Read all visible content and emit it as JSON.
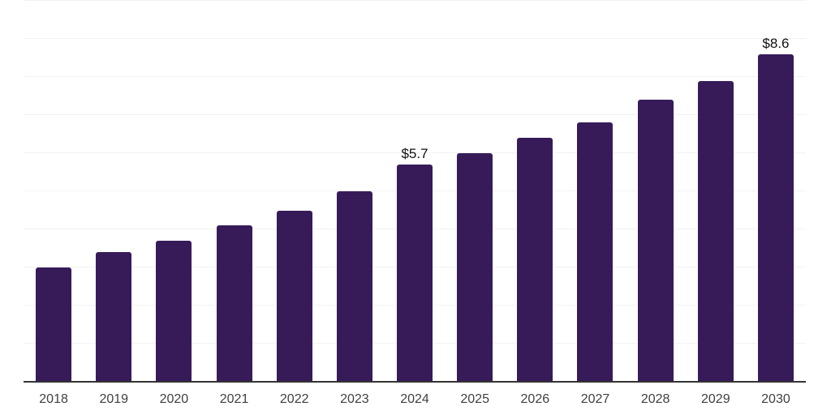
{
  "chart_data": {
    "type": "bar",
    "title": "",
    "xlabel": "",
    "ylabel": "",
    "categories": [
      "2018",
      "2019",
      "2020",
      "2021",
      "2022",
      "2023",
      "2024",
      "2025",
      "2026",
      "2027",
      "2028",
      "2029",
      "2030"
    ],
    "values": [
      3.0,
      3.4,
      3.7,
      4.1,
      4.5,
      5.0,
      5.7,
      6.0,
      6.4,
      6.8,
      7.4,
      7.9,
      8.6
    ],
    "data_labels": {
      "2024": "$5.7",
      "2030": "$8.6"
    },
    "ylim": [
      0,
      10
    ],
    "gridline_step": 1,
    "grid": true,
    "legend": false,
    "colors": {
      "bar": "#371B59",
      "axis": "#333333",
      "gridline": "#f2f2f2",
      "tick_label": "#404040",
      "data_label": "#111111",
      "background": "#ffffff"
    }
  }
}
